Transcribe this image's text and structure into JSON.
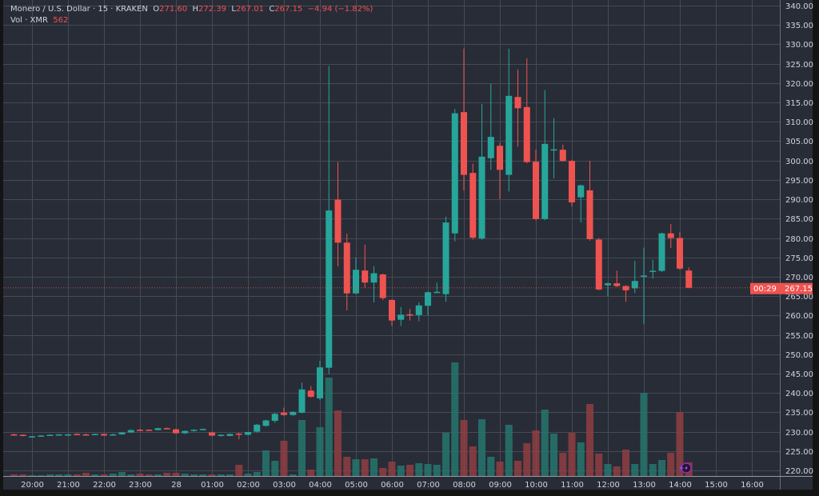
{
  "legend": {
    "symbol": "Monero / U.S. Dollar · 15 · KRAKEN",
    "o_label": "O",
    "o_value": "271.60",
    "h_label": "H",
    "h_value": "272.39",
    "l_label": "L",
    "l_value": "267.01",
    "c_label": "C",
    "c_value": "267.15",
    "change": "−4.94 (−1.82%)",
    "vol_label": "Vol · XMR",
    "vol_value": "562"
  },
  "price_tag": {
    "price": "267.15",
    "countdown": "00:29"
  },
  "colors": {
    "background": "#282c37",
    "grid": "#464a55",
    "up": "#26a69a",
    "down": "#ef5350",
    "up_vol": "#26756f",
    "down_vol": "#8f3e42",
    "text": "#d1d4dc"
  },
  "chart_data": {
    "type": "candlestick",
    "title": "Monero / U.S. Dollar · 15 · KRAKEN",
    "ylim": [
      220,
      340
    ],
    "yticks": [
      "220.00",
      "225.00",
      "230.00",
      "235.00",
      "240.00",
      "245.00",
      "250.00",
      "255.00",
      "260.00",
      "265.00",
      "270.00",
      "275.00",
      "280.00",
      "285.00",
      "290.00",
      "295.00",
      "300.00",
      "305.00",
      "310.00",
      "315.00",
      "320.00",
      "325.00",
      "330.00",
      "335.00",
      "340.00"
    ],
    "xticks": [
      "20:00",
      "21:00",
      "22:00",
      "23:00",
      "28",
      "01:00",
      "02:00",
      "03:00",
      "04:00",
      "05:00",
      "06:00",
      "07:00",
      "08:00",
      "09:00",
      "10:00",
      "11:00",
      "12:00",
      "13:00",
      "14:00",
      "15:00",
      "16:00"
    ],
    "grid": true,
    "last_price": 267.15,
    "candle_fields": [
      "time",
      "open",
      "high",
      "low",
      "close",
      "volume"
    ],
    "candles": [
      [
        "19:30",
        229.3,
        229.5,
        229.1,
        229.2,
        66
      ],
      [
        "19:45",
        229.2,
        229.3,
        228.8,
        228.9,
        66
      ],
      [
        "20:00",
        228.7,
        228.9,
        228.6,
        228.8,
        33
      ],
      [
        "20:15",
        228.8,
        229.1,
        228.7,
        229.0,
        33
      ],
      [
        "20:30",
        229.0,
        229.3,
        228.9,
        229.2,
        66
      ],
      [
        "20:45",
        229.2,
        229.4,
        229.0,
        229.3,
        66
      ],
      [
        "21:00",
        229.2,
        229.4,
        229.1,
        229.3,
        66
      ],
      [
        "21:15",
        229.4,
        229.6,
        229.2,
        229.3,
        66
      ],
      [
        "21:30",
        229.3,
        229.5,
        229.2,
        229.2,
        132
      ],
      [
        "21:45",
        229.2,
        229.5,
        229.1,
        229.4,
        66
      ],
      [
        "22:00",
        229.4,
        229.5,
        228.9,
        229.0,
        66
      ],
      [
        "22:15",
        229.1,
        229.5,
        229.0,
        229.3,
        99
      ],
      [
        "22:30",
        229.3,
        229.9,
        229.2,
        229.8,
        165
      ],
      [
        "22:45",
        229.8,
        230.6,
        229.7,
        230.4,
        66
      ],
      [
        "23:00",
        230.5,
        230.7,
        230.3,
        230.4,
        99
      ],
      [
        "23:15",
        230.5,
        230.6,
        230.3,
        230.4,
        66
      ],
      [
        "23:30",
        230.4,
        231.0,
        230.3,
        230.9,
        66
      ],
      [
        "23:45",
        230.9,
        231.1,
        230.7,
        230.8,
        132
      ],
      [
        "00:00",
        230.6,
        230.8,
        229.4,
        229.6,
        132
      ],
      [
        "00:15",
        229.6,
        230.3,
        229.4,
        230.2,
        99
      ],
      [
        "00:30",
        230.2,
        230.6,
        230.0,
        230.5,
        66
      ],
      [
        "00:45",
        230.4,
        230.8,
        230.3,
        230.7,
        66
      ],
      [
        "01:00",
        229.8,
        230.0,
        228.8,
        229.0,
        66
      ],
      [
        "01:15",
        228.9,
        229.3,
        228.7,
        229.2,
        66
      ],
      [
        "01:30",
        228.9,
        229.5,
        228.8,
        229.4,
        66
      ],
      [
        "01:45",
        229.5,
        229.7,
        228.0,
        229.3,
        462
      ],
      [
        "02:00",
        229.2,
        230.0,
        229.0,
        229.9,
        99
      ],
      [
        "02:15",
        230.0,
        232.0,
        229.8,
        231.8,
        165
      ],
      [
        "02:30",
        231.5,
        233.1,
        231.3,
        232.9,
        1056
      ],
      [
        "02:45",
        232.8,
        234.9,
        232.3,
        234.6,
        627
      ],
      [
        "03:00",
        234.9,
        236.2,
        234.1,
        234.3,
        1452
      ],
      [
        "03:15",
        234.3,
        235.3,
        234.1,
        235.1,
        66
      ],
      [
        "03:30",
        234.9,
        242.7,
        234.7,
        240.9,
        2310
      ],
      [
        "03:45",
        240.6,
        241.8,
        238.8,
        239.0,
        264
      ],
      [
        "04:00",
        238.6,
        248.3,
        238.2,
        246.6,
        2013
      ],
      [
        "04:15",
        246.5,
        324.4,
        244.9,
        287.1,
        4059
      ],
      [
        "04:30",
        289.9,
        299.6,
        272.7,
        278.8,
        2706
      ],
      [
        "04:45",
        278.8,
        281.1,
        261.3,
        265.7,
        792
      ],
      [
        "05:00",
        265.7,
        275.0,
        265.5,
        271.8,
        693
      ],
      [
        "05:15",
        271.6,
        278.3,
        267.2,
        268.5,
        693
      ],
      [
        "05:30",
        268.5,
        272.7,
        263.4,
        270.9,
        726
      ],
      [
        "05:45",
        270.6,
        270.8,
        264.0,
        264.5,
        330
      ],
      [
        "06:00",
        264.0,
        264.2,
        257.3,
        258.7,
        594
      ],
      [
        "06:15",
        258.9,
        262.2,
        257.3,
        260.2,
        429
      ],
      [
        "06:30",
        260.3,
        261.7,
        258.7,
        260.2,
        462
      ],
      [
        "06:45",
        260.1,
        263.4,
        258.5,
        262.6,
        528
      ],
      [
        "07:00",
        262.5,
        266.2,
        260.0,
        266.0,
        495
      ],
      [
        "07:15",
        266.0,
        268.5,
        265.8,
        266.1,
        462
      ],
      [
        "07:30",
        265.5,
        285.5,
        263.5,
        284.0,
        1782
      ],
      [
        "07:45",
        281.2,
        313.3,
        279.1,
        312.2,
        4686
      ],
      [
        "08:00",
        312.5,
        328.9,
        292.3,
        296.3,
        2310
      ],
      [
        "08:15",
        296.8,
        299.2,
        279.6,
        280.1,
        1221
      ],
      [
        "08:30",
        279.9,
        314.6,
        279.5,
        301.0,
        2343
      ],
      [
        "08:45",
        300.6,
        319.9,
        297.6,
        306.1,
        792
      ],
      [
        "09:00",
        303.8,
        304.6,
        290.1,
        297.6,
        594
      ],
      [
        "09:15",
        296.3,
        328.9,
        292.0,
        316.7,
        2112
      ],
      [
        "09:30",
        316.4,
        323.5,
        303.6,
        313.5,
        627
      ],
      [
        "09:45",
        313.8,
        326.4,
        299.3,
        299.6,
        1353
      ],
      [
        "10:00",
        299.7,
        302.8,
        284.6,
        284.9,
        1881
      ],
      [
        "10:15",
        284.9,
        318.2,
        284.6,
        304.3,
        2739
      ],
      [
        "10:30",
        302.8,
        310.9,
        295.4,
        302.9,
        1749
      ],
      [
        "10:45",
        302.8,
        304.1,
        299.7,
        299.9,
        957
      ],
      [
        "11:00",
        299.9,
        300.2,
        288.2,
        289.2,
        1782
      ],
      [
        "11:15",
        290.5,
        293.8,
        284.0,
        293.6,
        1386
      ],
      [
        "11:30",
        292.3,
        299.9,
        279.3,
        279.7,
        2970
      ],
      [
        "11:45",
        279.6,
        280.0,
        266.5,
        266.7,
        924
      ],
      [
        "12:00",
        267.8,
        268.5,
        265.0,
        268.3,
        495
      ],
      [
        "12:15",
        268.3,
        271.6,
        267.3,
        267.6,
        396
      ],
      [
        "12:30",
        267.6,
        267.8,
        263.5,
        266.5,
        1089
      ],
      [
        "12:45",
        267.0,
        274.1,
        265.8,
        268.9,
        495
      ],
      [
        "13:00",
        270.1,
        277.5,
        257.8,
        270.3,
        3432
      ],
      [
        "13:15",
        271.3,
        274.4,
        269.5,
        271.55,
        495
      ],
      [
        "13:30",
        271.5,
        281.4,
        271.2,
        281.2,
        660
      ],
      [
        "13:45",
        281.2,
        283.6,
        277.4,
        280.0,
        957
      ],
      [
        "14:00",
        280.0,
        281.5,
        271.8,
        272.1,
        2640
      ],
      [
        "14:15",
        271.6,
        272.39,
        267.01,
        267.15,
        562
      ]
    ]
  }
}
